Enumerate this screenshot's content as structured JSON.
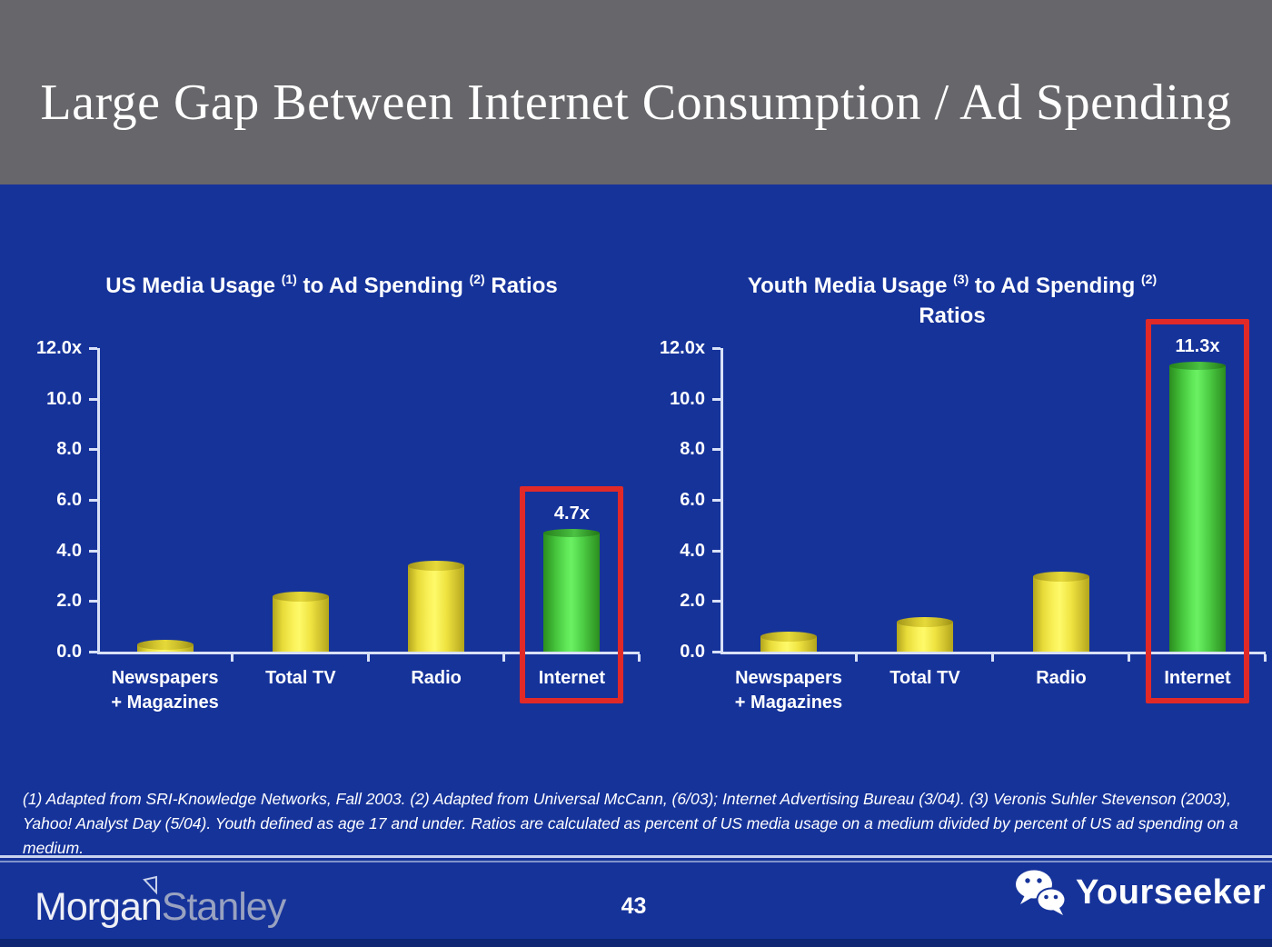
{
  "slide_title": "Large Gap Between Internet Consumption / Ad Spending",
  "footnote": "(1) Adapted from SRI-Knowledge Networks, Fall 2003.  (2) Adapted from Universal McCann, (6/03); Internet Advertising Bureau (3/04). (3) Veronis Suhler Stevenson (2003), Yahoo! Analyst Day (5/04).  Youth defined as age 17 and under.  Ratios are calculated as percent of US media usage on a medium divided by percent of US ad spending on a medium.",
  "footer": {
    "brand_part1": "Morgan",
    "brand_part2": "Stanley",
    "brand_flag_icon": "morgan-stanley-flag-icon",
    "page_number": "43",
    "watermark_label": "Yourseeker",
    "watermark_icon": "wechat-icon"
  },
  "colors": {
    "background_blue": "#16339A",
    "header_gray": "#67666A",
    "axis_line": "#D9E1F7",
    "text_white": "#FFFFFF",
    "bar_yellow_center": "#FDF968",
    "bar_yellow_edge": "#B3A51C",
    "bar_green_center": "#6AF062",
    "bar_green_edge": "#2B8D1E",
    "highlight_red": "#E12A28",
    "stanley_gray": "#98A2C0",
    "bottom_strip_navy": "#0E2674"
  },
  "chart_data": [
    {
      "type": "bar",
      "title": "US Media Usage (1) to Ad Spending (2) Ratios",
      "title_parts": [
        {
          "text": "US Media Usage "
        },
        {
          "sup": "(1)"
        },
        {
          "text": " to Ad Spending "
        },
        {
          "sup": "(2)"
        },
        {
          "text": " Ratios"
        }
      ],
      "categories": [
        [
          "Newspapers",
          "+ Magazines"
        ],
        [
          "Total TV"
        ],
        [
          "Radio"
        ],
        [
          "Internet"
        ]
      ],
      "values": [
        0.3,
        2.2,
        3.4,
        4.7
      ],
      "bar_colors": [
        "yellow",
        "yellow",
        "yellow",
        "green"
      ],
      "highlight_index": 3,
      "highlight_label": "4.7x",
      "ylim": [
        0,
        12
      ],
      "yticks": [
        {
          "value": 12,
          "label": "12.0x"
        },
        {
          "value": 10,
          "label": "10.0"
        },
        {
          "value": 8,
          "label": "8.0"
        },
        {
          "value": 6,
          "label": "6.0"
        },
        {
          "value": 4,
          "label": "4.0"
        },
        {
          "value": 2,
          "label": "2.0"
        },
        {
          "value": 0,
          "label": "0.0"
        }
      ],
      "grid": false,
      "legend": "none"
    },
    {
      "type": "bar",
      "title": "Youth Media Usage (3) to Ad Spending (2) Ratios",
      "title_parts": [
        {
          "text": "Youth Media Usage "
        },
        {
          "sup": "(3)"
        },
        {
          "text": " to Ad Spending "
        },
        {
          "sup": "(2)"
        },
        {
          "br": true
        },
        {
          "text": "Ratios"
        }
      ],
      "categories": [
        [
          "Newspapers",
          "+ Magazines"
        ],
        [
          "Total TV"
        ],
        [
          "Radio"
        ],
        [
          "Internet"
        ]
      ],
      "values": [
        0.6,
        1.2,
        3.0,
        11.3
      ],
      "bar_colors": [
        "yellow",
        "yellow",
        "yellow",
        "green"
      ],
      "highlight_index": 3,
      "highlight_label": "11.3x",
      "ylim": [
        0,
        12
      ],
      "yticks": [
        {
          "value": 12,
          "label": "12.0x"
        },
        {
          "value": 10,
          "label": "10.0"
        },
        {
          "value": 8,
          "label": "8.0"
        },
        {
          "value": 6,
          "label": "6.0"
        },
        {
          "value": 4,
          "label": "4.0"
        },
        {
          "value": 2,
          "label": "2.0"
        },
        {
          "value": 0,
          "label": "0.0"
        }
      ],
      "grid": false,
      "legend": "none"
    }
  ]
}
